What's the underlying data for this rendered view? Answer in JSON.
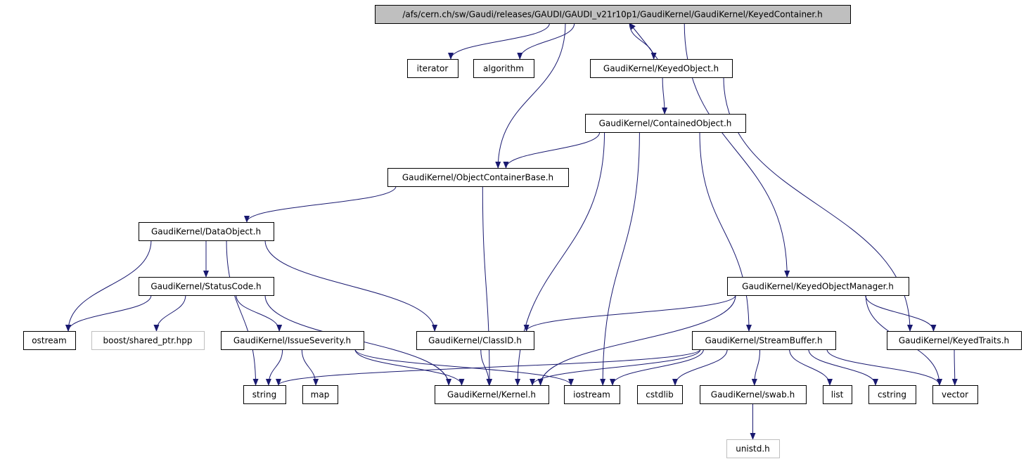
{
  "nodes": [
    {
      "label": "/afs/cern.ch/sw/Gaudi/releases/GAUDI/GAUDI_v21r10p1/GaudiKernel/GaudiKernel/KeyedContainer.h"
    },
    {
      "label": "iterator"
    },
    {
      "label": "algorithm"
    },
    {
      "label": "GaudiKernel/KeyedObject.h"
    },
    {
      "label": "GaudiKernel/ContainedObject.h"
    },
    {
      "label": "GaudiKernel/ObjectContainerBase.h"
    },
    {
      "label": "GaudiKernel/DataObject.h"
    },
    {
      "label": "GaudiKernel/StatusCode.h"
    },
    {
      "label": "GaudiKernel/KeyedObjectManager.h"
    },
    {
      "label": "ostream"
    },
    {
      "label": "boost/shared_ptr.hpp"
    },
    {
      "label": "GaudiKernel/IssueSeverity.h"
    },
    {
      "label": "GaudiKernel/ClassID.h"
    },
    {
      "label": "GaudiKernel/StreamBuffer.h"
    },
    {
      "label": "GaudiKernel/KeyedTraits.h"
    },
    {
      "label": "string"
    },
    {
      "label": "map"
    },
    {
      "label": "GaudiKernel/Kernel.h"
    },
    {
      "label": "iostream"
    },
    {
      "label": "cstdlib"
    },
    {
      "label": "GaudiKernel/swab.h"
    },
    {
      "label": "list"
    },
    {
      "label": "cstring"
    },
    {
      "label": "vector"
    },
    {
      "label": "unistd.h"
    }
  ]
}
